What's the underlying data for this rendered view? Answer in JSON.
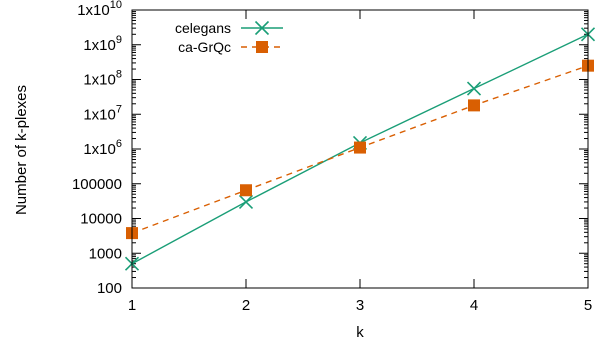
{
  "chart_data": {
    "type": "line",
    "xlabel": "k",
    "ylabel": "Number of k-plexes",
    "x": [
      1,
      2,
      3,
      4,
      5
    ],
    "xlim": [
      1,
      5
    ],
    "ylim": [
      100,
      10000000000
    ],
    "yscale": "log",
    "x_ticks": [
      "1",
      "2",
      "3",
      "4",
      "5"
    ],
    "y_ticks": [
      {
        "value": 100,
        "mant": "100",
        "exp": ""
      },
      {
        "value": 1000,
        "mant": "1000",
        "exp": ""
      },
      {
        "value": 10000,
        "mant": "10000",
        "exp": ""
      },
      {
        "value": 100000,
        "mant": "100000",
        "exp": ""
      },
      {
        "value": 1000000,
        "mant": "1x10",
        "exp": "6"
      },
      {
        "value": 10000000,
        "mant": "1x10",
        "exp": "7"
      },
      {
        "value": 100000000,
        "mant": "1x10",
        "exp": "8"
      },
      {
        "value": 1000000000,
        "mant": "1x10",
        "exp": "9"
      },
      {
        "value": 10000000000,
        "mant": "1x10",
        "exp": "10"
      }
    ],
    "grid": false,
    "legend_position": "top-left",
    "series": [
      {
        "name": "celegans",
        "color": "#1a9e77",
        "line": "solid",
        "marker": "x",
        "values": [
          500,
          30000,
          1500000,
          55000000,
          2000000000
        ]
      },
      {
        "name": "ca-GrQc",
        "color": "#d95f02",
        "line": "dashed",
        "marker": "square",
        "values": [
          3800,
          65000,
          1100000,
          18000000,
          250000000
        ]
      }
    ]
  }
}
